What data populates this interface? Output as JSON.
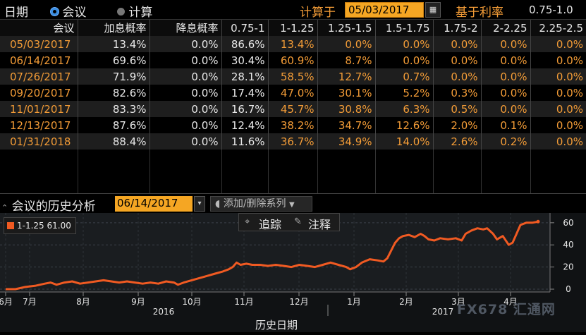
{
  "header": {
    "date_tab": "日期",
    "meeting_tab": "会议",
    "calc_tab": "计算",
    "calc_on_label": "计算于",
    "calc_date": "05/03/2017",
    "base_rate_label": "基于利率",
    "base_rate_value": "0.75-1.0"
  },
  "table": {
    "columns": [
      "会议",
      "加息概率",
      "降息概率",
      "0.75-1",
      "1-1.25",
      "1.25-1.5",
      "1.5-1.75",
      "1.75-2",
      "2-2.25",
      "2.25-2.5"
    ],
    "rows": [
      [
        "05/03/2017",
        "13.4%",
        "0.0%",
        "86.6%",
        "13.4%",
        "0.0%",
        "0.0%",
        "0.0%",
        "0.0%",
        "0.0%"
      ],
      [
        "06/14/2017",
        "69.6%",
        "0.0%",
        "30.4%",
        "60.9%",
        "8.7%",
        "0.0%",
        "0.0%",
        "0.0%",
        "0.0%"
      ],
      [
        "07/26/2017",
        "71.9%",
        "0.0%",
        "28.1%",
        "58.5%",
        "12.7%",
        "0.7%",
        "0.0%",
        "0.0%",
        "0.0%"
      ],
      [
        "09/20/2017",
        "82.6%",
        "0.0%",
        "17.4%",
        "47.0%",
        "30.1%",
        "5.2%",
        "0.3%",
        "0.0%",
        "0.0%"
      ],
      [
        "11/01/2017",
        "83.3%",
        "0.0%",
        "16.7%",
        "45.7%",
        "30.8%",
        "6.3%",
        "0.5%",
        "0.0%",
        "0.0%"
      ],
      [
        "12/13/2017",
        "87.6%",
        "0.0%",
        "12.4%",
        "38.2%",
        "34.7%",
        "12.6%",
        "2.0%",
        "0.1%",
        "0.0%"
      ],
      [
        "01/31/2018",
        "88.4%",
        "0.0%",
        "11.6%",
        "36.7%",
        "34.9%",
        "14.0%",
        "2.6%",
        "0.2%",
        "0.0%"
      ]
    ]
  },
  "history": {
    "title": "会议的历史分析",
    "meeting_date": "06/14/2017",
    "dropdown_icon": "▾",
    "series_button": "添加/删除系列",
    "track_button": "追踪",
    "annotate_button": "注释",
    "legend_label": "1-1.25",
    "legend_value": "61.00",
    "xaxis_title": "历史日期"
  },
  "chart_data": {
    "type": "line",
    "series": [
      {
        "name": "1-1.25",
        "color": "#f05a22",
        "points": [
          [
            0,
            0
          ],
          [
            5,
            0
          ],
          [
            10,
            2
          ],
          [
            15,
            3
          ],
          [
            20,
            5
          ],
          [
            23,
            6
          ],
          [
            26,
            4
          ],
          [
            30,
            6
          ],
          [
            34,
            7
          ],
          [
            38,
            5
          ],
          [
            42,
            6
          ],
          [
            46,
            7
          ],
          [
            50,
            8
          ],
          [
            54,
            7
          ],
          [
            58,
            6
          ],
          [
            62,
            7
          ],
          [
            66,
            6
          ],
          [
            70,
            5
          ],
          [
            74,
            6
          ],
          [
            78,
            5
          ],
          [
            82,
            7
          ],
          [
            86,
            6
          ],
          [
            88,
            4
          ],
          [
            91,
            6
          ],
          [
            95,
            8
          ],
          [
            99,
            10
          ],
          [
            103,
            12
          ],
          [
            107,
            14
          ],
          [
            111,
            16
          ],
          [
            114,
            18
          ],
          [
            116,
            20
          ],
          [
            118,
            24
          ],
          [
            120,
            22
          ],
          [
            123,
            23
          ],
          [
            126,
            22
          ],
          [
            130,
            22
          ],
          [
            134,
            21
          ],
          [
            138,
            22
          ],
          [
            142,
            21
          ],
          [
            146,
            20
          ],
          [
            150,
            22
          ],
          [
            154,
            21
          ],
          [
            158,
            20
          ],
          [
            162,
            22
          ],
          [
            166,
            24
          ],
          [
            170,
            22
          ],
          [
            174,
            20
          ],
          [
            176,
            18
          ],
          [
            179,
            20
          ],
          [
            182,
            24
          ],
          [
            186,
            27
          ],
          [
            190,
            26
          ],
          [
            193,
            25
          ],
          [
            195,
            28
          ],
          [
            197,
            35
          ],
          [
            199,
            42
          ],
          [
            201,
            46
          ],
          [
            203,
            48
          ],
          [
            206,
            49
          ],
          [
            209,
            47
          ],
          [
            212,
            50
          ],
          [
            214,
            48
          ],
          [
            216,
            45
          ],
          [
            219,
            44
          ],
          [
            222,
            46
          ],
          [
            226,
            45
          ],
          [
            230,
            46
          ],
          [
            233,
            44
          ],
          [
            235,
            50
          ],
          [
            238,
            53
          ],
          [
            241,
            55
          ],
          [
            244,
            54
          ],
          [
            246,
            55
          ],
          [
            249,
            50
          ],
          [
            251,
            45
          ],
          [
            254,
            48
          ],
          [
            257,
            40
          ],
          [
            259,
            42
          ],
          [
            261,
            50
          ],
          [
            263,
            58
          ],
          [
            266,
            60
          ],
          [
            269,
            60
          ],
          [
            272,
            61
          ]
        ]
      }
    ],
    "xticks": [
      "6月",
      "7月",
      "8月",
      "9月",
      "10月",
      "11月",
      "12月",
      "1月",
      "2月",
      "3月",
      "4月"
    ],
    "years": [
      "2016",
      "2017"
    ],
    "yticks": [
      0,
      20,
      40,
      60
    ],
    "ylim": [
      0,
      65
    ],
    "grid": true
  },
  "watermark": "FX678 汇通网"
}
